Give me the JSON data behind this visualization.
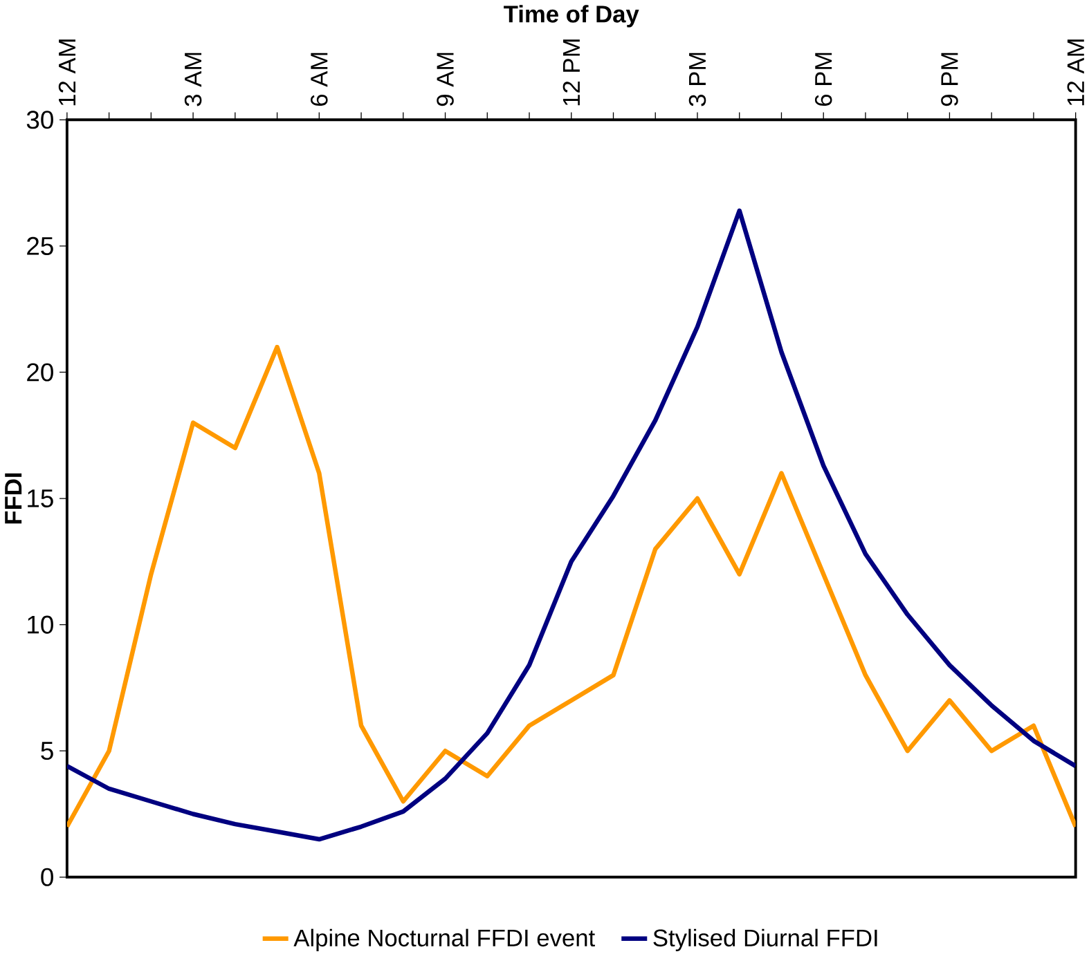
{
  "chart_data": {
    "type": "line",
    "xlabel": "Time of Day",
    "ylabel": "FFDI",
    "categories": [
      "12 AM",
      null,
      null,
      "3 AM",
      null,
      null,
      "6 AM",
      null,
      null,
      "9 AM",
      null,
      null,
      "12 PM",
      null,
      null,
      "3 PM",
      null,
      null,
      "6 PM",
      null,
      null,
      "9 PM",
      null,
      null,
      "12 AM"
    ],
    "series": [
      {
        "name": "Alpine Nocturnal FFDI event",
        "color": "#ff9900",
        "values": [
          2,
          5,
          12,
          18,
          17,
          21,
          16,
          6,
          3,
          5,
          4,
          6,
          7,
          8,
          13,
          15,
          12,
          16,
          12,
          8,
          5,
          7,
          5,
          6,
          2
        ]
      },
      {
        "name": "Stylised Diurnal FFDI",
        "color": "#000080",
        "values": [
          4.4,
          3.5,
          3.0,
          2.5,
          2.1,
          1.8,
          1.5,
          2.0,
          2.6,
          3.9,
          5.7,
          8.4,
          12.5,
          15.1,
          18.1,
          21.8,
          26.4,
          20.8,
          16.3,
          12.8,
          10.4,
          8.4,
          6.8,
          5.4,
          4.4
        ]
      }
    ],
    "ylim": [
      0,
      30
    ],
    "yticks": [
      0,
      5,
      10,
      15,
      20,
      25,
      30
    ],
    "grid": false,
    "legend": "bottom",
    "marker": "none",
    "line_style": "solid"
  }
}
